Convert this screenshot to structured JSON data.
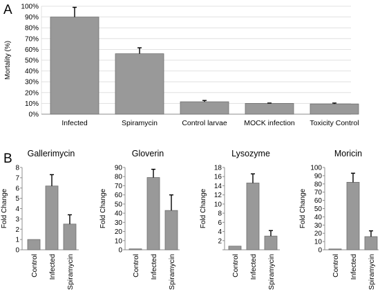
{
  "panels": {
    "a": "A",
    "b": "B"
  },
  "chart_data": [
    {
      "type": "bar",
      "title": "",
      "xlabel": "",
      "ylabel": "Mortality (%)",
      "ylim": [
        0,
        100
      ],
      "yticks": [
        "0%",
        "10%",
        "20%",
        "30%",
        "40%",
        "50%",
        "60%",
        "70%",
        "80%",
        "90%",
        "100%"
      ],
      "categories": [
        "Infected",
        "Spiramycin",
        "Control larvae",
        "MOCK infection",
        "Toxicity Control"
      ],
      "values": [
        90,
        56,
        11.5,
        10,
        9.5
      ],
      "errors": [
        9,
        5.5,
        1.2,
        0.3,
        0.8
      ],
      "bar_color": "#999999",
      "grid": true
    },
    {
      "type": "bar",
      "title": "Gallerimycin",
      "ylabel": "Fold Change",
      "ylim": [
        0,
        8
      ],
      "yticks": [
        "0",
        "1",
        "2",
        "3",
        "4",
        "5",
        "6",
        "7",
        "8"
      ],
      "categories": [
        "Control",
        "Infected",
        "Spiramycin"
      ],
      "values": [
        1.0,
        6.2,
        2.5
      ],
      "errors": [
        0,
        1.1,
        0.9
      ],
      "bar_color": "#999999"
    },
    {
      "type": "bar",
      "title": "Gloverin",
      "ylabel": "Fold Change",
      "ylim": [
        0,
        90
      ],
      "yticks": [
        "0",
        "10",
        "20",
        "30",
        "40",
        "50",
        "60",
        "70",
        "80",
        "90"
      ],
      "categories": [
        "Control",
        "Infected",
        "Spiramycin"
      ],
      "values": [
        1,
        79,
        43
      ],
      "errors": [
        0,
        9,
        17
      ],
      "bar_color": "#999999"
    },
    {
      "type": "bar",
      "title": "Lysozyme",
      "ylabel": "Fold Change",
      "ylim": [
        0,
        18
      ],
      "yticks": [
        "",
        "2",
        "4",
        "6",
        "8",
        "10",
        "12",
        "14",
        "16",
        "18"
      ],
      "categories": [
        "Control",
        "Infected",
        "Spiramycin"
      ],
      "values": [
        0.8,
        14.6,
        3.0
      ],
      "errors": [
        0,
        2.0,
        1.2
      ],
      "bar_color": "#999999"
    },
    {
      "type": "bar",
      "title": "Moricin",
      "ylabel": "Fold Change",
      "ylim": [
        0,
        100
      ],
      "yticks": [
        "0",
        "10",
        "20",
        "30",
        "40",
        "50",
        "60",
        "70",
        "80",
        "90",
        "100"
      ],
      "categories": [
        "Control",
        "Infected",
        "Spiramycin"
      ],
      "values": [
        1,
        82,
        16
      ],
      "errors": [
        0,
        11,
        7
      ],
      "bar_color": "#999999"
    }
  ]
}
